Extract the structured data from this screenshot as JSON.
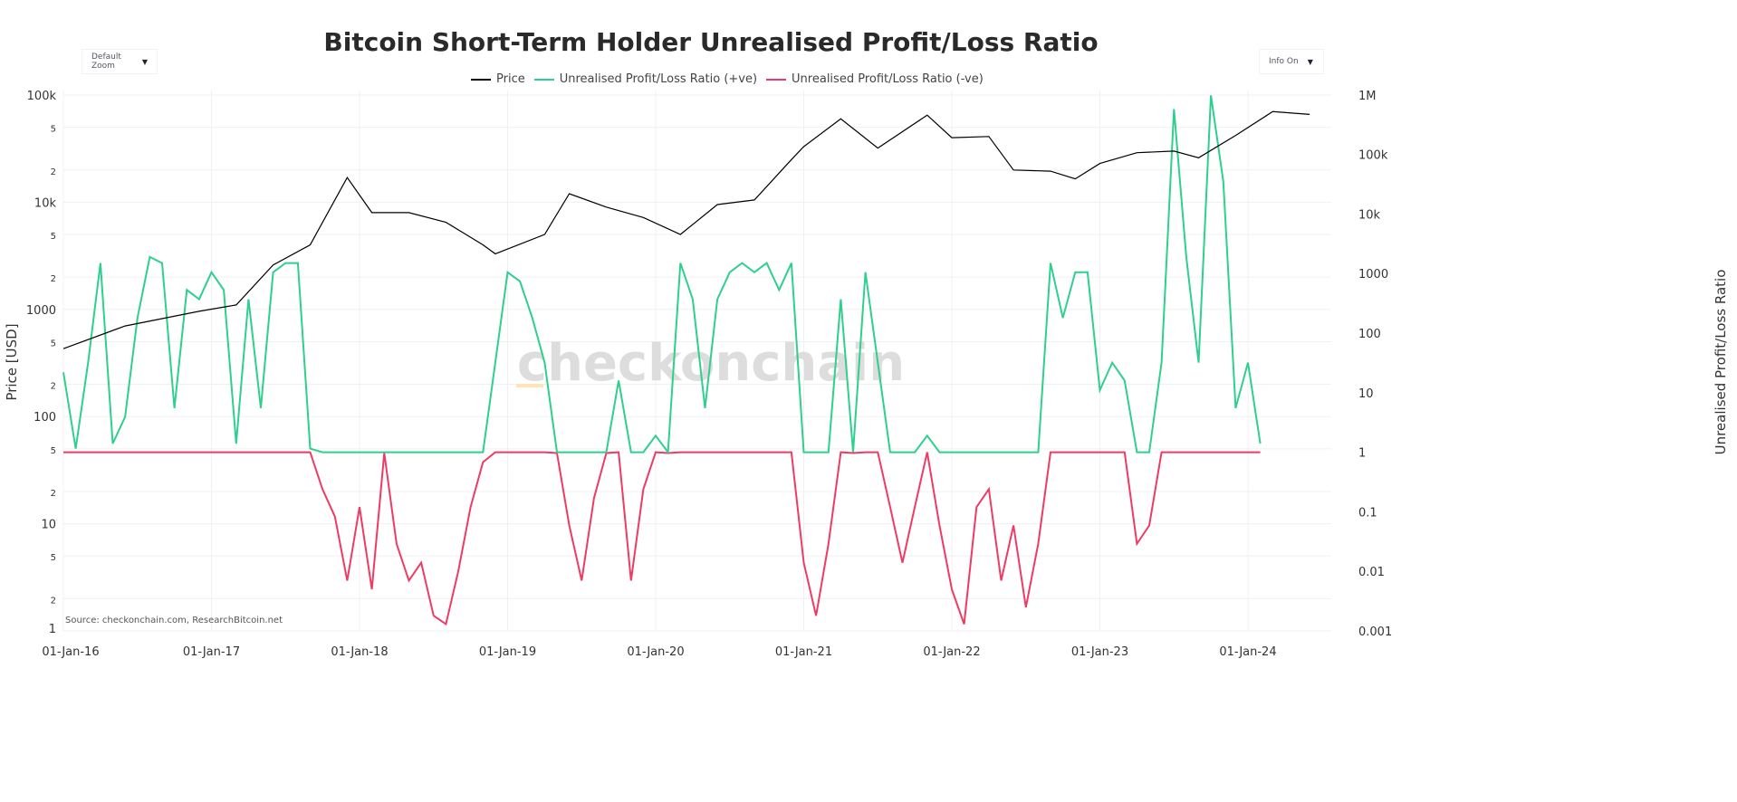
{
  "title": "Bitcoin Short-Term Holder Unrealised Profit/Loss Ratio",
  "controls": {
    "zoom_label": "Default Zoom",
    "info_label": "Info On"
  },
  "watermark": "checkonchain",
  "source": "Source: checkonchain.com, ResearchBitcoin.net",
  "colors": {
    "price": "#000000",
    "positive": "#2ecf8f",
    "negative": "#ee3b64"
  },
  "chart_data": {
    "type": "line",
    "title": "Bitcoin Short-Term Holder Unrealised Profit/Loss Ratio",
    "legend": [
      "Price",
      "Unrealised Profit/Loss Ratio (+ve)",
      "Unrealised Profit/Loss Ratio (-ve)"
    ],
    "legend_placement": "top-center",
    "ylabel_left": "Price [USD]",
    "ylabel_right": "Unrealised Profit/Loss Ratio",
    "y_left_scale": "log",
    "y_left_range": [
      1,
      100000
    ],
    "y_right_scale": "log",
    "y_right_range": [
      0.001,
      1000000
    ],
    "y_left_ticks": [
      "100k",
      "5",
      "2",
      "10k",
      "5",
      "2",
      "1000",
      "5",
      "2",
      "100",
      "5",
      "2",
      "10",
      "5",
      "2",
      "1"
    ],
    "y_left_tick_values": [
      100000,
      50000,
      20000,
      10000,
      5000,
      2000,
      1000,
      500,
      200,
      100,
      50,
      20,
      10,
      5,
      2,
      1
    ],
    "y_right_ticks": [
      "1M",
      "100k",
      "10k",
      "1000",
      "100",
      "10",
      "1",
      "0.1",
      "0.01",
      "0.001"
    ],
    "y_right_tick_values": [
      1000000,
      100000,
      10000,
      1000,
      100,
      10,
      1,
      0.1,
      0.01,
      0.001
    ],
    "x_ticks": [
      "01-Jan-16",
      "01-Jan-17",
      "01-Jan-18",
      "01-Jan-19",
      "01-Jan-20",
      "01-Jan-21",
      "01-Jan-22",
      "01-Jan-23",
      "01-Jan-24"
    ],
    "x_tick_dates": [
      "2016-01",
      "2017-01",
      "2018-01",
      "2019-01",
      "2020-01",
      "2021-01",
      "2022-01",
      "2023-01",
      "2024-01"
    ],
    "grid": true,
    "price": {
      "dates": [
        "2016-01",
        "2016-06",
        "2016-12",
        "2017-03",
        "2017-06",
        "2017-09",
        "2017-12",
        "2018-02",
        "2018-05",
        "2018-08",
        "2018-11",
        "2018-12",
        "2019-04",
        "2019-06",
        "2019-09",
        "2019-12",
        "2020-03",
        "2020-06",
        "2020-09",
        "2020-12",
        "2021-01",
        "2021-04",
        "2021-07",
        "2021-11",
        "2022-01",
        "2022-04",
        "2022-06",
        "2022-09",
        "2022-11",
        "2023-01",
        "2023-04",
        "2023-07",
        "2023-09",
        "2023-12",
        "2024-03",
        "2024-06"
      ],
      "values": [
        430,
        700,
        960,
        1100,
        2600,
        4000,
        17000,
        8000,
        8000,
        6500,
        4000,
        3300,
        5000,
        12000,
        9000,
        7200,
        5000,
        9500,
        10500,
        25000,
        33000,
        60000,
        32000,
        65000,
        40000,
        41000,
        20000,
        19500,
        16500,
        23000,
        29000,
        30000,
        26000,
        42000,
        70000,
        66000
      ]
    },
    "ratio": {
      "start": "2016-01",
      "step": "monthly",
      "values": [
        22,
        1.15,
        32,
        1500,
        1.4,
        3.9,
        180,
        1900,
        1500,
        5.5,
        530,
        370,
        1050,
        530,
        1.4,
        370,
        5.5,
        1050,
        1500,
        1500,
        1.15,
        0.24,
        0.083,
        0.007,
        0.12,
        0.005,
        0.97,
        0.029,
        0.007,
        0.014,
        0.0018,
        0.0013,
        0.01,
        0.12,
        0.68,
        32,
        1050,
        740,
        180,
        32,
        0.97,
        0.059,
        0.007,
        0.17,
        0.97,
        16,
        0.007,
        0.24,
        1.9,
        0.97,
        1500,
        370,
        5.5,
        370,
        1050,
        1500,
        1050,
        1500,
        530,
        1500,
        0.014,
        0.0018,
        0.029,
        370,
        0.97,
        1050,
        32,
        0.12,
        0.014,
        0.12,
        1.9,
        0.059,
        0.005,
        0.0013,
        0.12,
        0.24,
        0.007,
        0.059,
        0.0025,
        0.029,
        1500,
        180,
        1050,
        1050,
        11,
        32,
        16,
        0.029,
        0.059,
        32,
        575000,
        1900,
        32,
        980000,
        35000,
        5.5,
        32,
        1.4
      ]
    }
  }
}
